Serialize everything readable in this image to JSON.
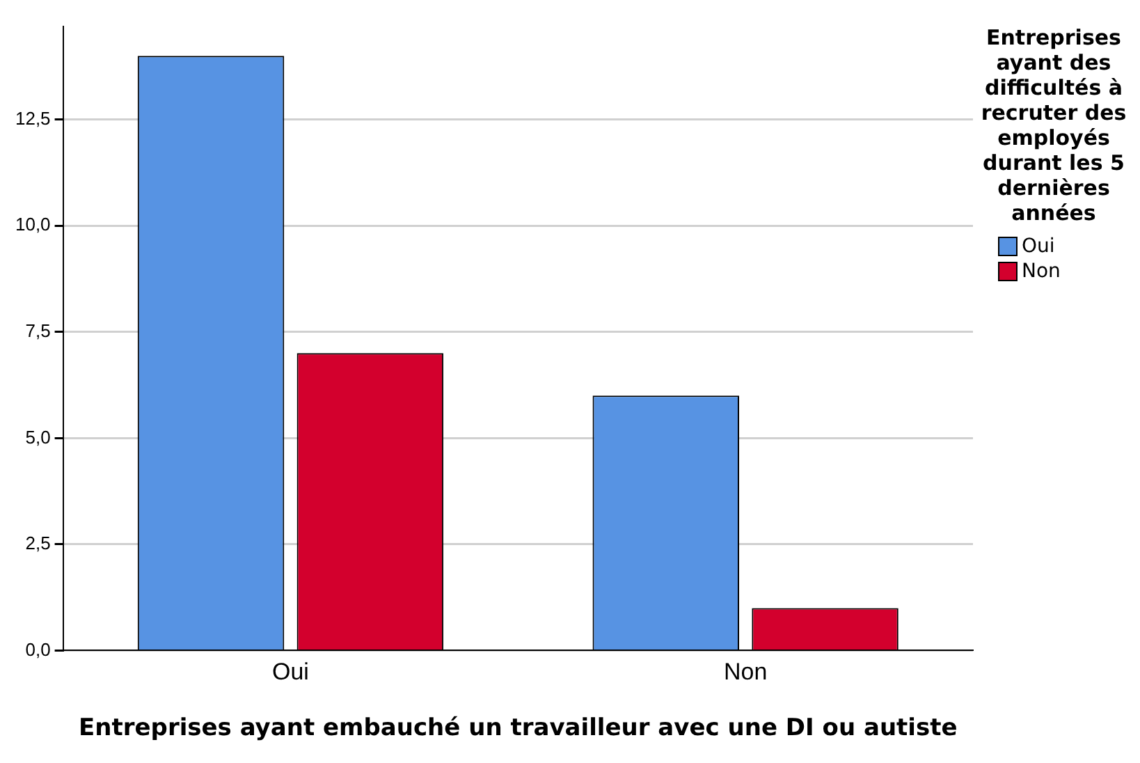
{
  "chart_data": {
    "type": "bar",
    "xlabel": "Entreprises ayant embauché un travailleur avec une DI ou autiste",
    "legend_title": "Entreprises ayant des difficultés à recruter des employés durant les 5 dernières années",
    "categories": [
      "Oui",
      "Non"
    ],
    "series": [
      {
        "name": "Oui",
        "color": "#5793e3",
        "values": [
          14,
          6
        ]
      },
      {
        "name": "Non",
        "color": "#d3002d",
        "values": [
          7,
          1
        ]
      }
    ],
    "ylim": [
      0,
      14.7
    ],
    "yticks": [
      {
        "value": 0,
        "label": "0,0"
      },
      {
        "value": 2.5,
        "label": "2,5"
      },
      {
        "value": 5,
        "label": "5,0"
      },
      {
        "value": 7.5,
        "label": "7,5"
      },
      {
        "value": 10,
        "label": "10,0"
      },
      {
        "value": 12.5,
        "label": "12,5"
      }
    ],
    "grid": "y",
    "legend": "top right"
  }
}
